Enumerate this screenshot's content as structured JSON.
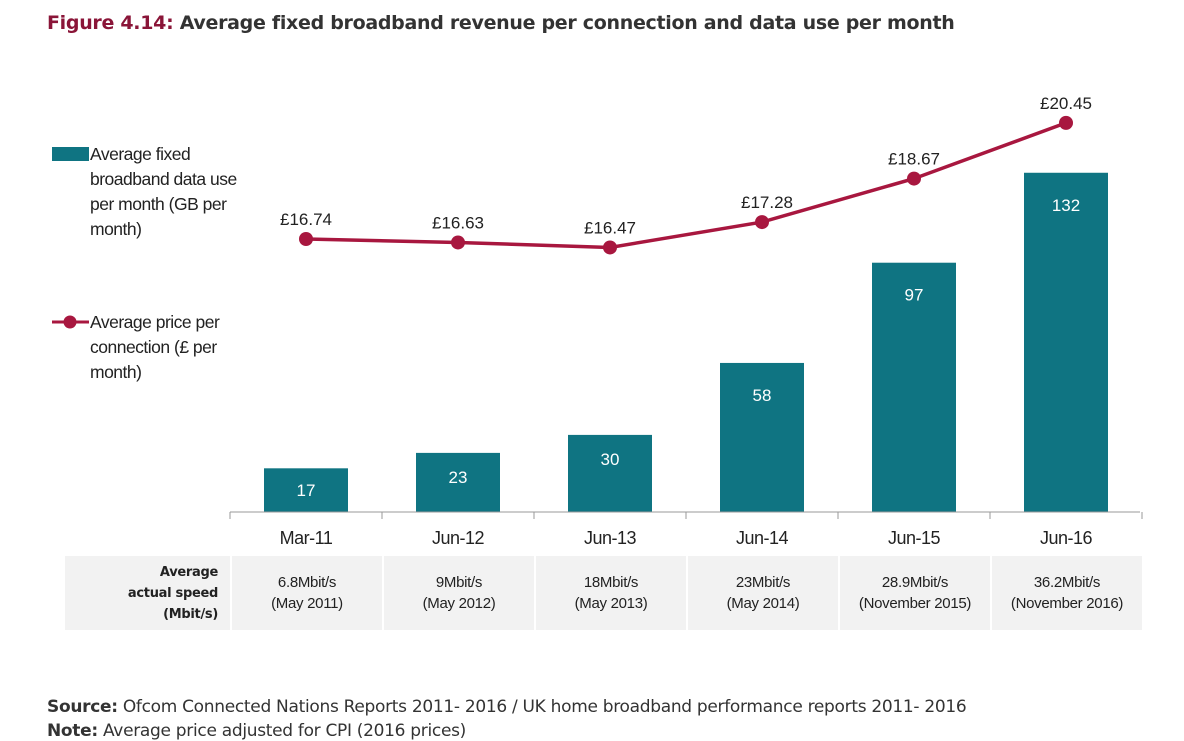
{
  "title_prefix": "Figure 4.14:",
  "title_text": " Average fixed broadband revenue per connection and data use per month",
  "chart_data": {
    "type": "bar+line",
    "categories": [
      "Mar-11",
      "Jun-12",
      "Jun-13",
      "Jun-14",
      "Jun-15",
      "Jun-16"
    ],
    "series": [
      {
        "name": "Average fixed broadband data use per month (GB per month)",
        "type": "bar",
        "color": "#0f7482",
        "values": [
          17,
          23,
          30,
          58,
          97,
          132
        ],
        "labels": [
          "17",
          "23",
          "30",
          "58",
          "97",
          "132"
        ]
      },
      {
        "name": "Average price per connection (£ per month)",
        "type": "line",
        "color": "#a8173f",
        "values": [
          16.74,
          16.63,
          16.47,
          17.28,
          18.67,
          20.45
        ],
        "labels": [
          "£16.74",
          "£16.63",
          "£16.47",
          "£17.28",
          "£18.67",
          "£20.45"
        ]
      }
    ],
    "legend": [
      "Average fixed broadband data use per month (GB per month)",
      "Average price per connection (£ per month)"
    ],
    "legend_placement": "left"
  },
  "legend": {
    "bar_lines": [
      "Average fixed",
      "broadband data use",
      "per month (GB per",
      "month)"
    ],
    "line_lines": [
      "Average price per",
      "connection (£ per",
      "month)"
    ]
  },
  "table": {
    "header_lines": [
      "Average",
      "actual speed",
      "(Mbit/s)"
    ],
    "cells": [
      [
        "6.8Mbit/s",
        "(May 2011)"
      ],
      [
        "9Mbit/s",
        "(May 2012)"
      ],
      [
        "18Mbit/s",
        "(May 2013)"
      ],
      [
        "23Mbit/s",
        "(May 2014)"
      ],
      [
        "28.9Mbit/s",
        "(November 2015)"
      ],
      [
        "36.2Mbit/s",
        "(November 2016)"
      ]
    ]
  },
  "source_label": "Source:",
  "source_text": " Ofcom Connected Nations Reports 2011- 2016 / UK home broadband performance reports 2011- 2016",
  "note_label": "Note:",
  "note_text": " Average price adjusted for CPI (2016 prices)"
}
